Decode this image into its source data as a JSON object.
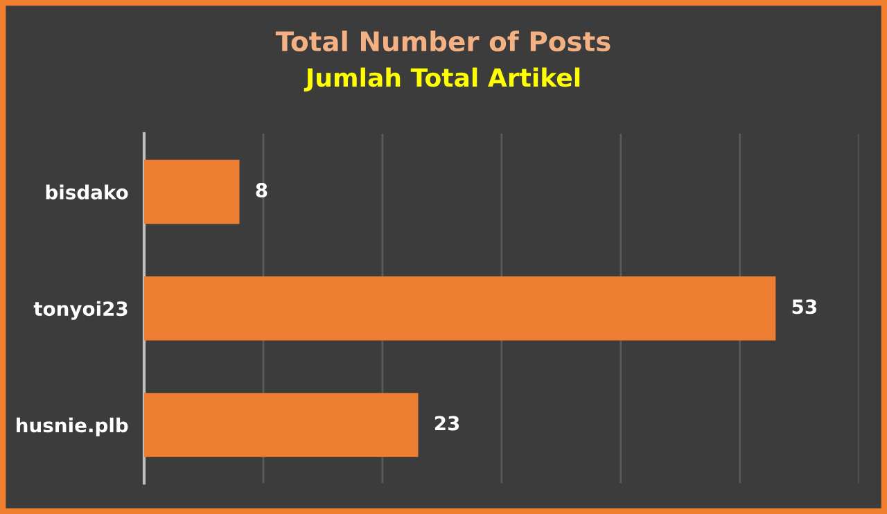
{
  "chart_data": {
    "type": "bar",
    "orientation": "horizontal",
    "title": "Total Number of Posts",
    "subtitle": "Jumlah Total Artikel",
    "categories": [
      "bisdako",
      "tonyoi23",
      "husnie.plb"
    ],
    "values": [
      8,
      53,
      23
    ],
    "color": "#ed7d31",
    "xlim": [
      0,
      60
    ],
    "xticks": [
      {
        "value": 0,
        "label": null
      },
      {
        "value": 10,
        "label": null
      },
      {
        "value": 20,
        "label": null
      },
      {
        "value": 30,
        "label": null
      },
      {
        "value": 40,
        "label": null
      },
      {
        "value": 50,
        "label": null
      },
      {
        "value": 60,
        "label": null
      }
    ],
    "tick_labels": "y",
    "grid": "x",
    "data_labels": true
  }
}
